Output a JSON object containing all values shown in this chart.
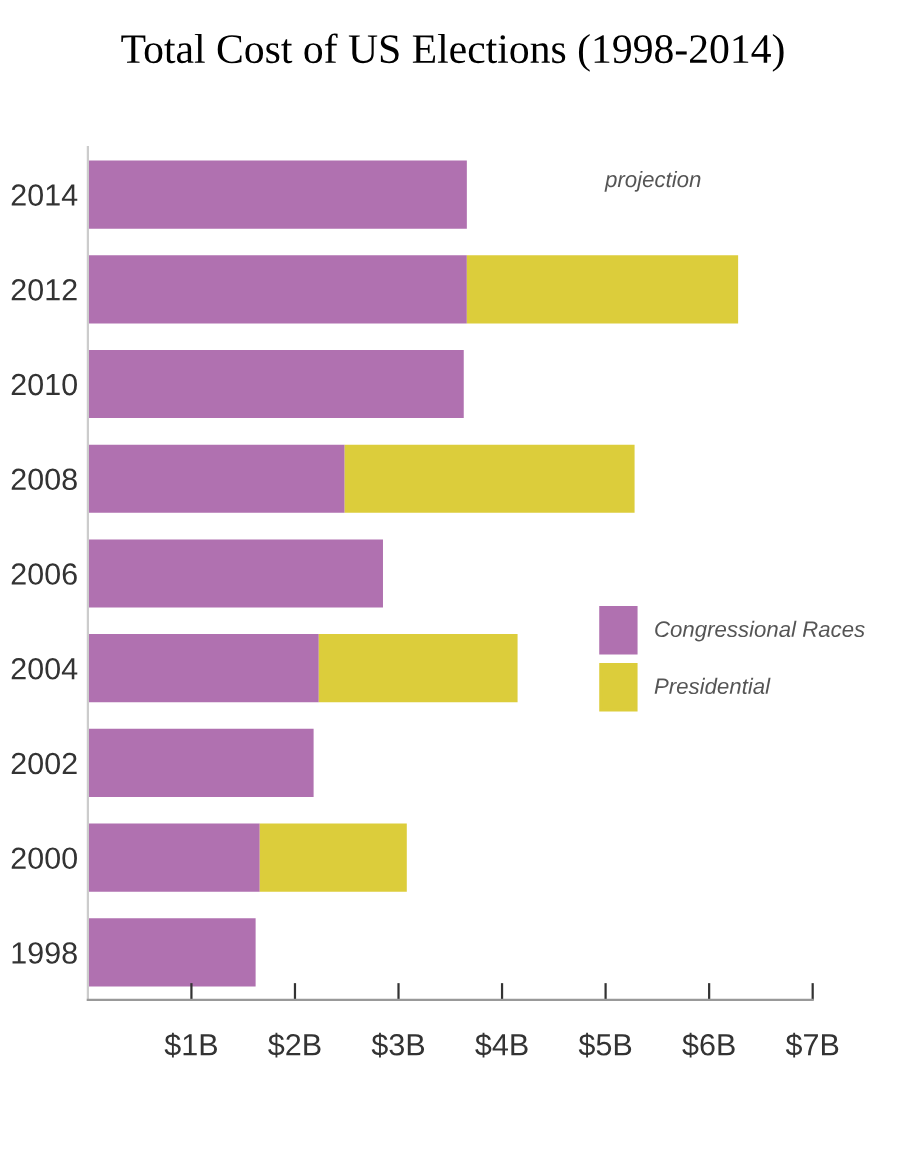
{
  "chart_data": {
    "type": "bar",
    "orientation": "horizontal",
    "stacked": true,
    "title": "Total Cost of US Elections (1998-2014)",
    "categories": [
      "2014",
      "2012",
      "2010",
      "2008",
      "2006",
      "2004",
      "2002",
      "2000",
      "1998"
    ],
    "series": [
      {
        "name": "Congressional Races",
        "color": "#b071b0",
        "values": [
          3.66,
          3.66,
          3.63,
          2.48,
          2.85,
          2.23,
          2.18,
          1.66,
          1.62
        ]
      },
      {
        "name": "Presidential",
        "color": "#dccd3b",
        "values": [
          null,
          2.62,
          null,
          2.8,
          null,
          1.92,
          null,
          1.42,
          null
        ]
      }
    ],
    "xlim": [
      0,
      7
    ],
    "xticks": [
      {
        "value": 1,
        "label": "$1B"
      },
      {
        "value": 2,
        "label": "$2B"
      },
      {
        "value": 3,
        "label": "$3B"
      },
      {
        "value": 4,
        "label": "$4B"
      },
      {
        "value": 5,
        "label": "$5B"
      },
      {
        "value": 6,
        "label": "$6B"
      },
      {
        "value": 7,
        "label": "$7B"
      }
    ],
    "annotations": [
      "projection"
    ],
    "legend": "right",
    "grid": false
  }
}
